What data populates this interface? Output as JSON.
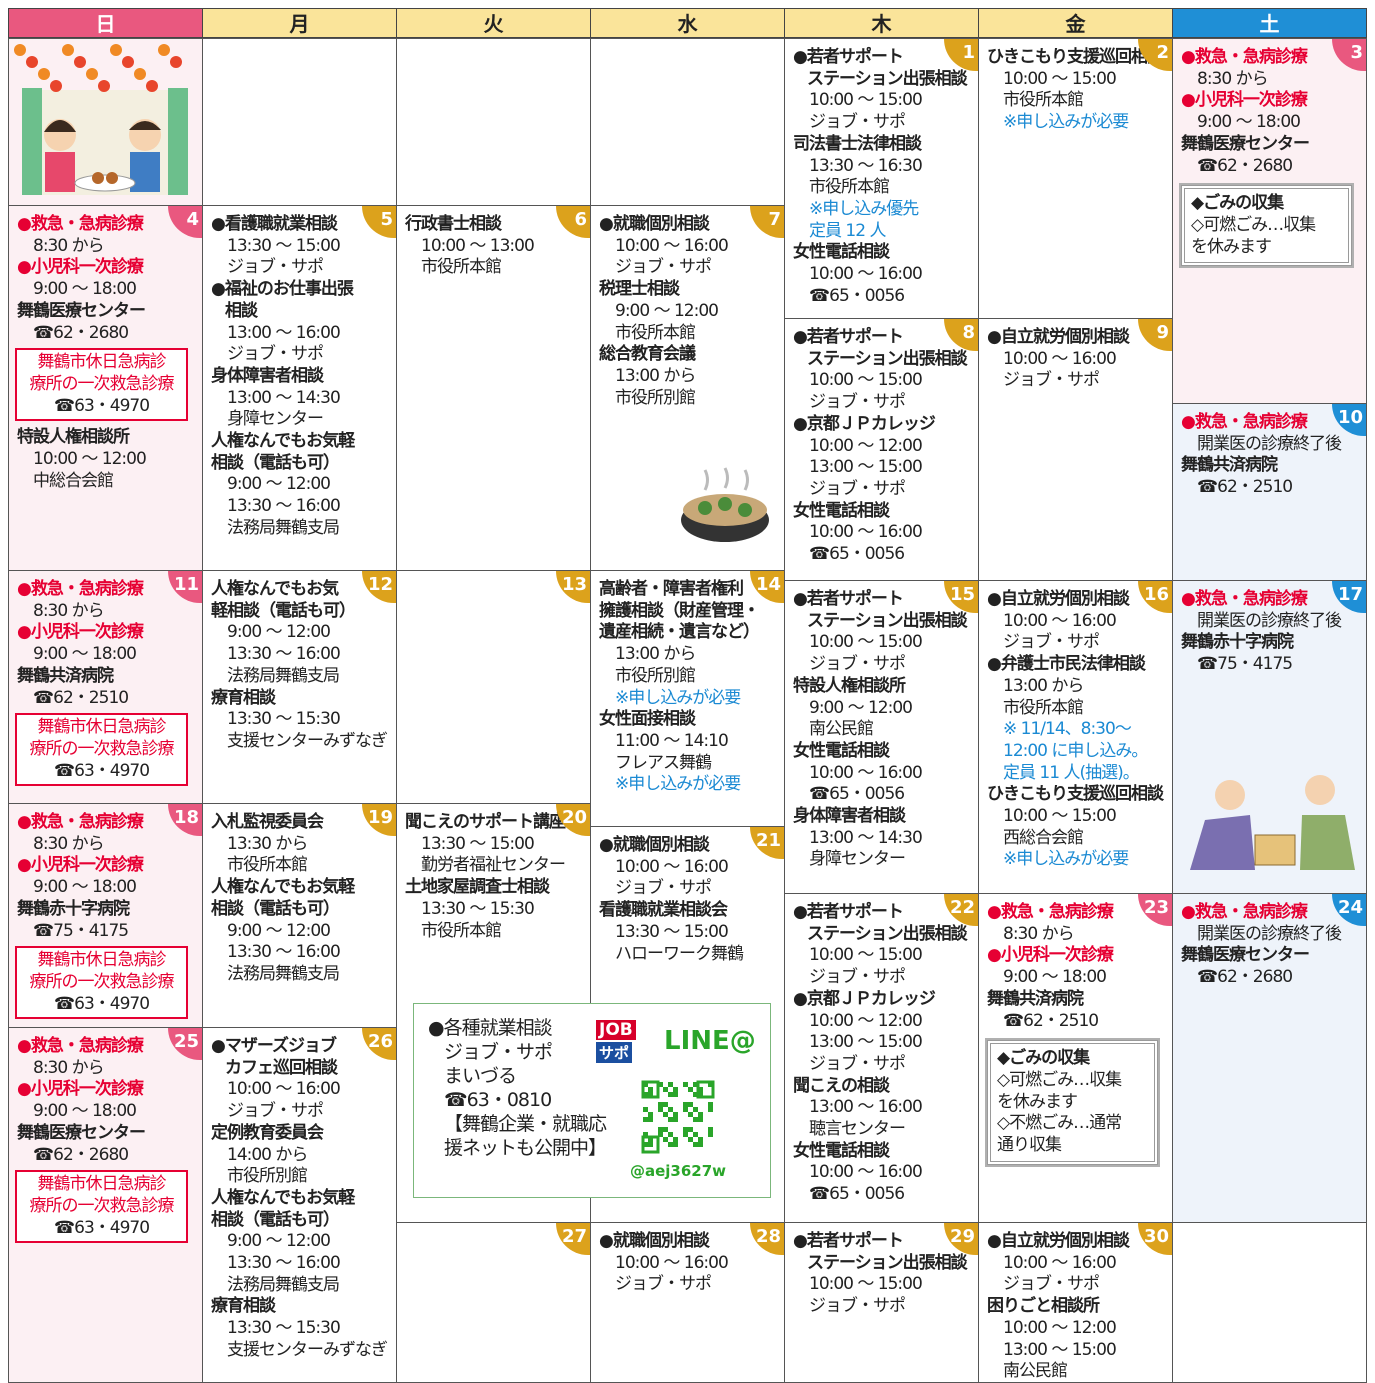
{
  "header": {
    "days": [
      "日",
      "月",
      "火",
      "水",
      "木",
      "金",
      "土"
    ]
  },
  "cells": [
    {
      "date": 1,
      "badge_color": "#dca21c",
      "lines": [
        {
          "text": "●若者サポート",
          "bold": true
        },
        {
          "text": "ステーション出張相談",
          "bold": true
        },
        "10:00 ～ 15:00",
        "ジョブ・サポ",
        {
          "text": "司法書士法律相談",
          "bold": true
        },
        "13:30 ～ 16:30",
        "市役所本館",
        {
          "text": "※申し込み優先",
          "color": "#1b8ad3"
        },
        {
          "text": "定員 12 人",
          "color": "#1b8ad3"
        },
        {
          "text": "女性電話相談",
          "bold": true
        },
        "10:00 ～ 16:00",
        "☎65・0056"
      ]
    },
    {
      "date": 2,
      "badge_color": "#dca21c",
      "lines": [
        {
          "text": "ひきこもり支援巡回相談",
          "bold": true
        },
        "10:00 ～ 15:00",
        "市役所本館",
        {
          "text": "※申し込みが必要",
          "color": "#1b8ad3"
        }
      ]
    },
    {
      "date": 3,
      "badge_color": "#e9587f",
      "background": "#fcf0f3",
      "lines": [
        {
          "text": "●救急・急病診療",
          "bold": true,
          "color": "#e60033"
        },
        "8:30 から",
        {
          "text": "●小児科一次診療",
          "bold": true,
          "color": "#e60033"
        },
        "9:00 ～ 18:00",
        {
          "text": "舞鶴医療センター",
          "bold": true
        },
        "☎62・2680",
        {
          "border": "#9a9a9a",
          "box": [
            {
              "text": "◆ごみの収集",
              "bold": true
            },
            "◇可燃ごみ…収集",
            "を休みます"
          ]
        }
      ]
    },
    {
      "date": 4,
      "badge_color": "#e9587f",
      "background": "#fcf0f3",
      "lines": [
        {
          "text": "●救急・急病診療",
          "bold": true,
          "color": "#e60033"
        },
        "8:30 から",
        {
          "text": "●小児科一次診療",
          "bold": true,
          "color": "#e60033"
        },
        "9:00 ～ 18:00",
        {
          "text": "舞鶴医療センター",
          "bold": true
        },
        "☎62・2680",
        {
          "border": "#e60033",
          "box": [
            {
              "text": "舞鶴市休日急病診",
              "color": "#e60033"
            },
            {
              "text": "療所の一次救急診療",
              "color": "#e60033"
            },
            "☎63・4970"
          ]
        },
        {
          "text": "特設人権相談所",
          "bold": true
        },
        "10:00 ～ 12:00",
        "中総合会館"
      ]
    },
    {
      "date": 5,
      "badge_color": "#dca21c",
      "lines": [
        {
          "text": "●看護職就業相談",
          "bold": true
        },
        "13:30 ～ 15:00",
        "ジョブ・サポ",
        {
          "text": "●福祉のお仕事出張",
          "bold": true
        },
        {
          "text": "相談",
          "bold": true
        },
        "13:00 ～ 16:00",
        "ジョブ・サポ",
        {
          "text": "身体障害者相談",
          "bold": true
        },
        "13:00 ～ 14:30",
        "身障センター",
        {
          "text": "人権なんでもお気軽",
          "bold": true
        },
        {
          "text": "相談（電話も可）",
          "bold": true
        },
        "9:00 ～ 12:00",
        "13:30 ～ 16:00",
        "法務局舞鶴支局"
      ]
    },
    {
      "date": 6,
      "badge_color": "#dca21c",
      "lines": [
        {
          "text": "行政書士相談",
          "bold": true
        },
        "10:00 ～ 13:00",
        "市役所本館"
      ]
    },
    {
      "date": 7,
      "badge_color": "#dca21c",
      "lines": [
        {
          "text": "●就職個別相談",
          "bold": true
        },
        "10:00 ～ 16:00",
        "ジョブ・サポ",
        {
          "text": "税理士相談",
          "bold": true
        },
        "9:00 ～ 12:00",
        "市役所本館",
        {
          "text": "総合教育会議",
          "bold": true
        },
        "13:00 から",
        "市役所別館"
      ]
    },
    {
      "date": 8,
      "badge_color": "#dca21c",
      "lines": [
        {
          "text": "●若者サポート",
          "bold": true
        },
        {
          "text": "ステーション出張相談",
          "bold": true
        },
        "10:00 ～ 15:00",
        "ジョブ・サポ",
        {
          "text": "●京都ＪＰカレッジ",
          "bold": true
        },
        "10:00 ～ 12:00",
        "13:00 ～ 15:00",
        "ジョブ・サポ",
        {
          "text": "女性電話相談",
          "bold": true
        },
        "10:00 ～ 16:00",
        "☎65・0056"
      ]
    },
    {
      "date": 9,
      "badge_color": "#dca21c",
      "lines": [
        {
          "text": "●自立就労個別相談",
          "bold": true
        },
        "10:00 ～ 16:00",
        "ジョブ・サポ"
      ]
    },
    {
      "date": 10,
      "badge_color": "#1f8fd6",
      "background": "#eef3fa",
      "lines": [
        {
          "text": "●救急・急病診療",
          "bold": true,
          "color": "#e60033"
        },
        "開業医の診療終了後",
        {
          "text": "舞鶴共済病院",
          "bold": true
        },
        "☎62・2510"
      ]
    },
    {
      "date": 11,
      "badge_color": "#e9587f",
      "background": "#fcf0f3",
      "lines": [
        {
          "text": "●救急・急病診療",
          "bold": true,
          "color": "#e60033"
        },
        "8:30 から",
        {
          "text": "●小児科一次診療",
          "bold": true,
          "color": "#e60033"
        },
        "9:00 ～ 18:00",
        {
          "text": "舞鶴共済病院",
          "bold": true
        },
        "☎62・2510",
        {
          "border": "#e60033",
          "box": [
            {
              "text": "舞鶴市休日急病診",
              "color": "#e60033"
            },
            {
              "text": "療所の一次救急診療",
              "color": "#e60033"
            },
            "☎63・4970"
          ]
        }
      ]
    },
    {
      "date": 12,
      "badge_color": "#dca21c",
      "lines": [
        {
          "text": "人権なんでもお気",
          "bold": true
        },
        {
          "text": "軽相談（電話も可）",
          "bold": true
        },
        "9:00 ～ 12:00",
        "13:30 ～ 16:00",
        "法務局舞鶴支局",
        {
          "text": "療育相談",
          "bold": true
        },
        "13:30 ～ 15:30",
        "支援センターみずなぎ"
      ]
    },
    {
      "date": 13,
      "badge_color": "#dca21c",
      "lines": []
    },
    {
      "date": 14,
      "badge_color": "#dca21c",
      "lines": [
        {
          "text": "高齢者・障害者権利",
          "bold": true
        },
        {
          "text": "擁護相談（財産管理・",
          "bold": true
        },
        {
          "text": "遺産相続・遺言など）",
          "bold": true
        },
        "13:00 から",
        "市役所別館",
        {
          "text": "※申し込みが必要",
          "color": "#1b8ad3"
        },
        {
          "text": "女性面接相談",
          "bold": true
        },
        "11:00 ～ 14:10",
        "フレアス舞鶴",
        {
          "text": "※申し込みが必要",
          "color": "#1b8ad3"
        }
      ]
    },
    {
      "date": 15,
      "badge_color": "#dca21c",
      "lines": [
        {
          "text": "●若者サポート",
          "bold": true
        },
        {
          "text": "ステーション出張相談",
          "bold": true
        },
        "10:00 ～ 15:00",
        "ジョブ・サポ",
        {
          "text": "特設人権相談所",
          "bold": true
        },
        "9:00 ～ 12:00",
        "南公民館",
        {
          "text": "女性電話相談",
          "bold": true
        },
        "10:00 ～ 16:00",
        "☎65・0056",
        {
          "text": "身体障害者相談",
          "bold": true
        },
        "13:00 ～ 14:30",
        "身障センター"
      ]
    },
    {
      "date": 16,
      "badge_color": "#dca21c",
      "lines": [
        {
          "text": "●自立就労個別相談",
          "bold": true
        },
        "10:00 ～ 16:00",
        "ジョブ・サポ",
        {
          "text": "●弁護士市民法律相談",
          "bold": true
        },
        "13:00 から",
        "市役所本館",
        {
          "text": "※ 11/14、8:30～",
          "color": "#1b8ad3"
        },
        {
          "text": "12:00 に申し込み。",
          "color": "#1b8ad3"
        },
        {
          "text": "定員 11 人(抽選)。",
          "color": "#1b8ad3"
        },
        {
          "text": "ひきこもり支援巡回相談",
          "bold": true
        },
        "10:00 ～ 15:00",
        "西総合会館",
        {
          "text": "※申し込みが必要",
          "color": "#1b8ad3"
        }
      ]
    },
    {
      "date": 17,
      "badge_color": "#1f8fd6",
      "background": "#eef3fa",
      "lines": [
        {
          "text": "●救急・急病診療",
          "bold": true,
          "color": "#e60033"
        },
        "開業医の診療終了後",
        {
          "text": "舞鶴赤十字病院",
          "bold": true
        },
        "☎75・4175"
      ]
    },
    {
      "date": 18,
      "badge_color": "#e9587f",
      "background": "#fcf0f3",
      "lines": [
        {
          "text": "●救急・急病診療",
          "bold": true,
          "color": "#e60033"
        },
        "8:30 から",
        {
          "text": "●小児科一次診療",
          "bold": true,
          "color": "#e60033"
        },
        "9:00 ～ 18:00",
        {
          "text": "舞鶴赤十字病院",
          "bold": true
        },
        "☎75・4175",
        {
          "border": "#e60033",
          "box": [
            {
              "text": "舞鶴市休日急病診",
              "color": "#e60033"
            },
            {
              "text": "療所の一次救急診療",
              "color": "#e60033"
            },
            "☎63・4970"
          ]
        }
      ]
    },
    {
      "date": 19,
      "badge_color": "#dca21c",
      "lines": [
        {
          "text": "入札監視委員会",
          "bold": true
        },
        "13:30 から",
        "市役所本館",
        {
          "text": "人権なんでもお気軽",
          "bold": true
        },
        {
          "text": "相談（電話も可）",
          "bold": true
        },
        "9:00 ～ 12:00",
        "13:30 ～ 16:00",
        "法務局舞鶴支局"
      ]
    },
    {
      "date": 20,
      "badge_color": "#dca21c",
      "lines": [
        {
          "text": "聞こえのサポート講座",
          "bold": true
        },
        "13:30 ～ 15:00",
        "勤労者福祉センター",
        {
          "text": "土地家屋調査士相談",
          "bold": true
        },
        "13:30 ～ 15:30",
        "市役所本館"
      ]
    },
    {
      "date": 21,
      "badge_color": "#dca21c",
      "lines": [
        {
          "text": "●就職個別相談",
          "bold": true
        },
        "10:00 ～ 16:00",
        "ジョブ・サポ",
        {
          "text": "看護職就業相談会",
          "bold": true
        },
        "13:30 ～ 15:00",
        "ハローワーク舞鶴"
      ]
    },
    {
      "date": 22,
      "badge_color": "#dca21c",
      "lines": [
        {
          "text": "●若者サポート",
          "bold": true
        },
        {
          "text": "ステーション出張相談",
          "bold": true
        },
        "10:00 ～ 15:00",
        "ジョブ・サポ",
        {
          "text": "●京都ＪＰカレッジ",
          "bold": true
        },
        "10:00 ～ 12:00",
        "13:00 ～ 15:00",
        "ジョブ・サポ",
        {
          "text": "聞こえの相談",
          "bold": true
        },
        "13:00 ～ 16:00",
        "聴言センター",
        {
          "text": "女性電話相談",
          "bold": true
        },
        "10:00 ～ 16:00",
        "☎65・0056"
      ]
    },
    {
      "date": 23,
      "badge_color": "#e9587f",
      "lines": [
        {
          "text": "●救急・急病診療",
          "bold": true,
          "color": "#e60033"
        },
        "8:30 から",
        {
          "text": "●小児科一次診療",
          "bold": true,
          "color": "#e60033"
        },
        "9:00 ～ 18:00",
        {
          "text": "舞鶴共済病院",
          "bold": true
        },
        "☎62・2510",
        {
          "border": "#9a9a9a",
          "box": [
            {
              "text": "◆ごみの収集",
              "bold": true
            },
            "◇可燃ごみ…収集",
            "を休みます",
            "◇不燃ごみ…通常",
            "通り収集"
          ]
        }
      ]
    },
    {
      "date": 24,
      "badge_color": "#1f8fd6",
      "background": "#eef3fa",
      "lines": [
        {
          "text": "●救急・急病診療",
          "bold": true,
          "color": "#e60033"
        },
        "開業医の診療終了後",
        {
          "text": "舞鶴医療センター",
          "bold": true
        },
        "☎62・2680"
      ]
    },
    {
      "date": 25,
      "badge_color": "#e9587f",
      "background": "#fcf0f3",
      "lines": [
        {
          "text": "●救急・急病診療",
          "bold": true,
          "color": "#e60033"
        },
        "8:30 から",
        {
          "text": "●小児科一次診療",
          "bold": true,
          "color": "#e60033"
        },
        "9:00 ～ 18:00",
        {
          "text": "舞鶴医療センター",
          "bold": true
        },
        "☎62・2680",
        {
          "border": "#e60033",
          "box": [
            {
              "text": "舞鶴市休日急病診",
              "color": "#e60033"
            },
            {
              "text": "療所の一次救急診療",
              "color": "#e60033"
            },
            "☎63・4970"
          ]
        }
      ]
    },
    {
      "date": 26,
      "badge_color": "#dca21c",
      "lines": [
        {
          "text": "●マザーズジョブ",
          "bold": true
        },
        {
          "text": "カフェ巡回相談",
          "bold": true
        },
        "10:00 ～ 16:00",
        "ジョブ・サポ",
        {
          "text": "定例教育委員会",
          "bold": true
        },
        "14:00 から",
        "市役所別館",
        {
          "text": "人権なんでもお気軽",
          "bold": true
        },
        {
          "text": "相談（電話も可）",
          "bold": true
        },
        "9:00 ～ 12:00",
        "13:30 ～ 16:00",
        "法務局舞鶴支局",
        {
          "text": "療育相談",
          "bold": true
        },
        "13:30 ～ 15:30",
        "支援センターみずなぎ"
      ]
    },
    {
      "date": 27,
      "badge_color": "#dca21c",
      "lines": []
    },
    {
      "date": 28,
      "badge_color": "#dca21c",
      "lines": [
        {
          "text": "●就職個別相談",
          "bold": true
        },
        "10:00 ～ 16:00",
        "ジョブ・サポ"
      ]
    },
    {
      "date": 29,
      "badge_color": "#dca21c",
      "lines": [
        {
          "text": "●若者サポート",
          "bold": true
        },
        {
          "text": "ステーション出張相談",
          "bold": true
        },
        "10:00 ～ 15:00",
        "ジョブ・サポ"
      ]
    },
    {
      "date": 30,
      "badge_color": "#dca21c",
      "lines": [
        {
          "text": "●自立就労個別相談",
          "bold": true
        },
        "10:00 ～ 16:00",
        "ジョブ・サポ",
        {
          "text": "困りごと相談所",
          "bold": true
        },
        "10:00 ～ 12:00",
        "13:00 ～ 15:00",
        "南公民館"
      ]
    }
  ],
  "job_box": {
    "lines": [
      "●各種就業相談",
      "ジョブ・サポ",
      "まいづる",
      "☎63・0810",
      "【舞鶴企業・就職応",
      "援ネットも公開中】"
    ],
    "logo_job": "JOB",
    "logo_sapo": "サポ",
    "logo_line": "LINE@",
    "line_id": "@aej3627w"
  }
}
